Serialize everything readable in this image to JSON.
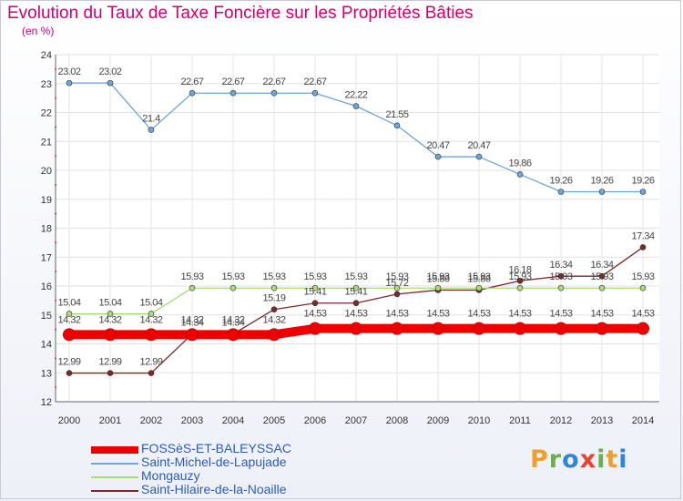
{
  "title": "Evolution du Taux de Taxe Foncière sur les Propriétés Bâties",
  "subtitle": "(en %)",
  "logo": {
    "text": "Proxiti",
    "colors": [
      "#f0a02a",
      "#6ab04c",
      "#2f86d6",
      "#e8432e",
      "#6ab04c",
      "#f0a02a",
      "#2f86d6"
    ]
  },
  "chart_data": {
    "type": "line",
    "x": [
      "2000",
      "2001",
      "2002",
      "2003",
      "2004",
      "2005",
      "2006",
      "2007",
      "2008",
      "2009",
      "2010",
      "2011",
      "2012",
      "2013",
      "2014"
    ],
    "ylim": [
      12,
      24
    ],
    "yticks": [
      "12",
      "13",
      "14",
      "15",
      "16",
      "17",
      "18",
      "19",
      "20",
      "21",
      "22",
      "23",
      "24"
    ],
    "grid": true,
    "legend_position": "bottom-left",
    "series": [
      {
        "name": "FOSSèS-ET-BALEYSSAC",
        "color": "#ee0000",
        "values": [
          14.32,
          14.32,
          14.32,
          14.32,
          14.32,
          14.32,
          14.53,
          14.53,
          14.53,
          14.53,
          14.53,
          14.53,
          14.53,
          14.53,
          14.53
        ],
        "labels": [
          "14.32",
          "14.32",
          "14.32",
          "14.32",
          "14.32",
          "14.32",
          "14.53",
          "14.53",
          "14.53",
          "14.53",
          "14.53",
          "14.53",
          "14.53",
          "14.53",
          "14.53"
        ]
      },
      {
        "name": "Saint-Michel-de-Lapujade",
        "color": "#6ea6d8",
        "values": [
          23.02,
          23.02,
          21.4,
          22.67,
          22.67,
          22.67,
          22.67,
          22.22,
          21.55,
          20.47,
          20.47,
          19.86,
          19.26,
          19.26,
          19.26
        ],
        "labels": [
          "23.02",
          "23.02",
          "21.4",
          "22.67",
          "22.67",
          "22.67",
          "22.67",
          "22.22",
          "21.55",
          "20.47",
          "20.47",
          "19.86",
          "19.26",
          "19.26",
          "19.26"
        ]
      },
      {
        "name": "Mongauzy",
        "color": "#a8dc7a",
        "values": [
          15.04,
          15.04,
          15.04,
          15.93,
          15.93,
          15.93,
          15.93,
          15.93,
          15.93,
          15.93,
          15.93,
          15.93,
          15.93,
          15.93,
          15.93
        ],
        "labels": [
          "15.04",
          "15.04",
          "15.04",
          "15.93",
          "15.93",
          "15.93",
          "15.93",
          "15.93",
          "15.93",
          "15.93",
          "15.93",
          "15.93",
          "15.93",
          "15.93",
          "15.93"
        ]
      },
      {
        "name": "Saint-Hilaire-de-la-Noaille",
        "color": "#7a2a2a",
        "values": [
          12.99,
          12.99,
          12.99,
          14.34,
          14.34,
          15.19,
          15.41,
          15.41,
          15.72,
          15.86,
          15.86,
          16.18,
          16.34,
          16.34,
          17.34
        ],
        "labels": [
          "12.99",
          "12.99",
          "12.99",
          "14.34",
          "14.34",
          "15.19",
          "15.41",
          "15.41",
          "15.72",
          "15.86",
          "15.86",
          "16.18",
          "16.34",
          "16.34",
          "17.34"
        ]
      }
    ]
  }
}
